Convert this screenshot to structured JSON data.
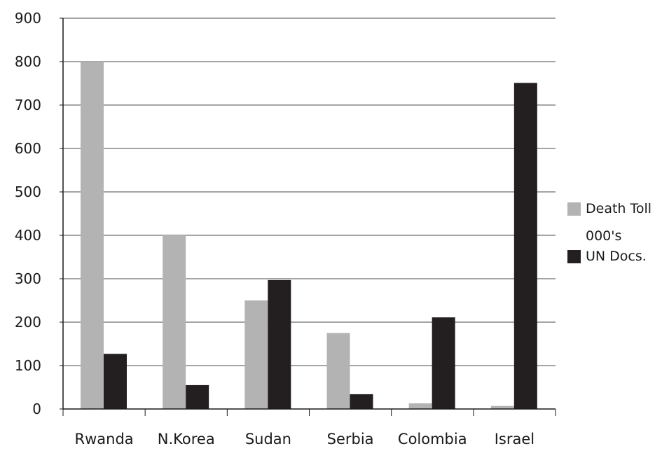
{
  "chart_data": {
    "type": "bar",
    "categories": [
      "Rwanda",
      "N.Korea",
      "Sudan",
      "Serbia",
      "Colombia",
      "Israel"
    ],
    "series": [
      {
        "name": "Death Toll 000's",
        "legend_lines": [
          "Death Toll",
          "000's"
        ],
        "color": "#b3b3b3",
        "values": [
          800,
          400,
          250,
          175,
          13,
          7
        ]
      },
      {
        "name": "UN Docs.",
        "legend_lines": [
          "UN Docs."
        ],
        "color": "#231f20",
        "values": [
          127,
          55,
          297,
          34,
          211,
          751
        ]
      }
    ],
    "ylim": [
      0,
      900
    ],
    "yticks": [
      "0",
      "100",
      "200",
      "300",
      "400",
      "500",
      "600",
      "700",
      "800",
      "900"
    ],
    "grid": true,
    "legend": "right"
  }
}
